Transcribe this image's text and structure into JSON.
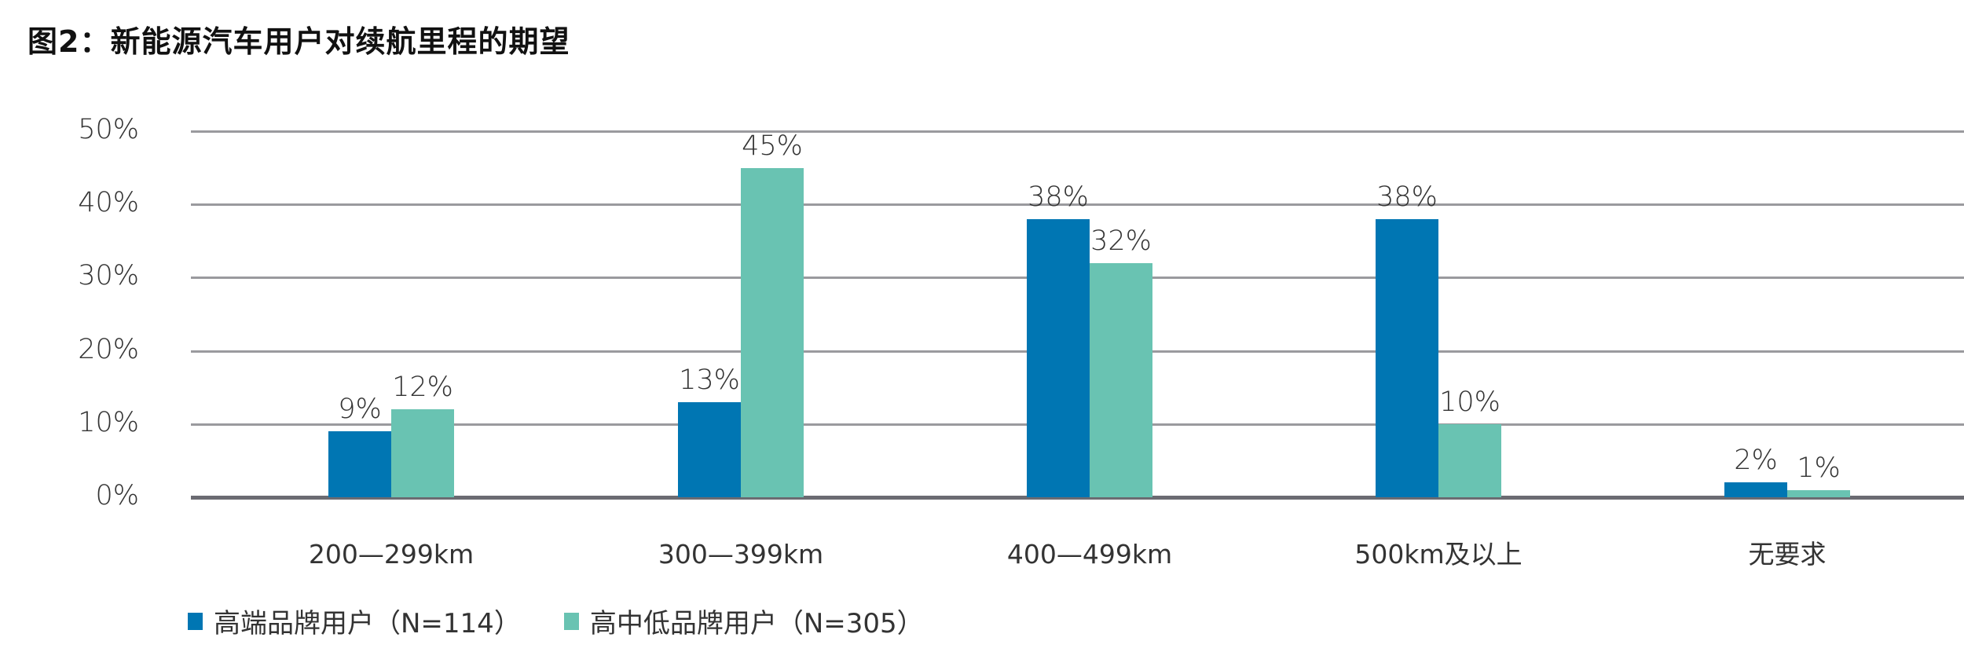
{
  "title": "图2：新能源汽车用户对续航里程的期望",
  "colors": {
    "series0": "#0076b3",
    "series1": "#69c3b2",
    "grid": "#9a9a9e",
    "baseline": "#6b6b72"
  },
  "legend": [
    {
      "label": "高端品牌用户（N=114）",
      "color": "#0076b3"
    },
    {
      "label": "高中低品牌用户（N=305）",
      "color": "#69c3b2"
    }
  ],
  "yaxis": {
    "ticks": [
      "0%",
      "10%",
      "20%",
      "30%",
      "40%",
      "50%"
    ]
  },
  "xaxis": {
    "categories": [
      "200—299km",
      "300—399km",
      "400—499km",
      "500km及以上",
      "无要求"
    ]
  },
  "chart_data": {
    "type": "bar",
    "title": "图2：新能源汽车用户对续航里程的期望",
    "xlabel": "",
    "ylabel": "",
    "categories": [
      "200—299km",
      "300—399km",
      "400—499km",
      "500km及以上",
      "无要求"
    ],
    "series": [
      {
        "name": "高端品牌用户（N=114）",
        "values": [
          9,
          13,
          38,
          38,
          2
        ],
        "labels": [
          "9%",
          "13%",
          "38%",
          "38%",
          "2%"
        ]
      },
      {
        "name": "高中低品牌用户（N=305）",
        "values": [
          12,
          45,
          32,
          10,
          1
        ],
        "labels": [
          "12%",
          "45%",
          "32%",
          "10%",
          "1%"
        ]
      }
    ],
    "ylim": [
      0,
      50
    ],
    "yticks": [
      "0%",
      "10%",
      "20%",
      "30%",
      "40%",
      "50%"
    ],
    "grid": true,
    "legend_position": "bottom-left"
  }
}
